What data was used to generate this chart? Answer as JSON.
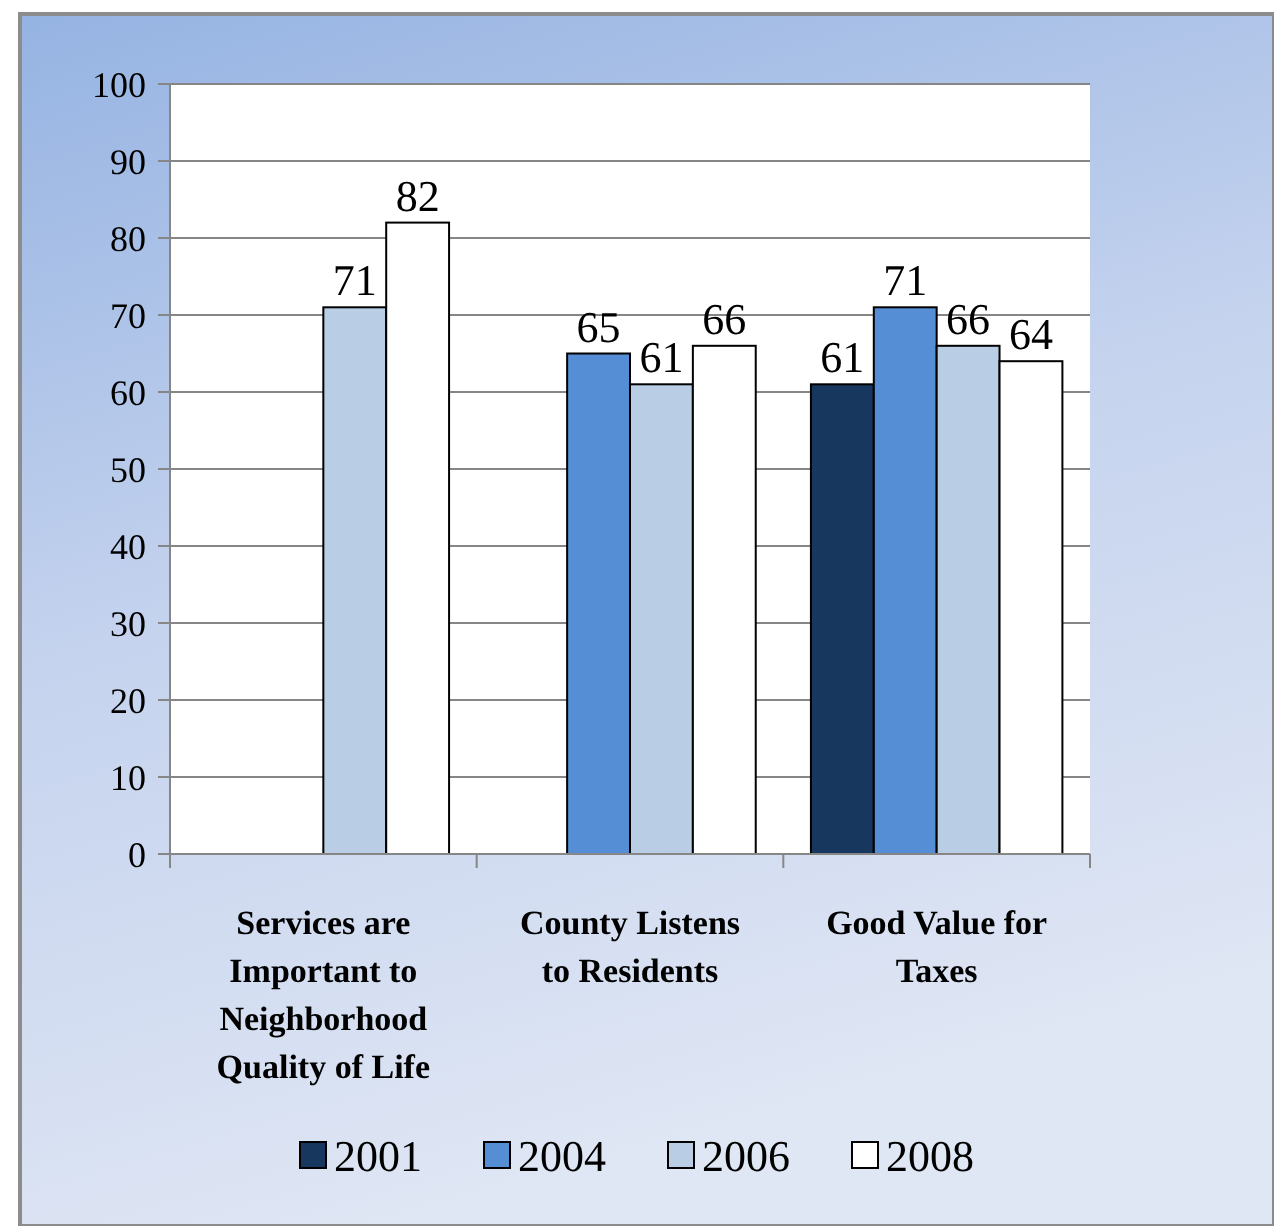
{
  "chart_data": {
    "type": "bar",
    "categories": [
      "Services are Important to Neighborhood Quality of Life",
      "County Listens to Residents",
      "Good Value for Taxes"
    ],
    "series": [
      {
        "name": "2001",
        "color": "#17375e",
        "values": [
          null,
          null,
          61
        ]
      },
      {
        "name": "2004",
        "color": "#558ed5",
        "values": [
          null,
          65,
          71
        ]
      },
      {
        "name": "2006",
        "color": "#b9cde5",
        "values": [
          71,
          61,
          66
        ]
      },
      {
        "name": "2008",
        "color": "#ffffff",
        "values": [
          82,
          66,
          64
        ]
      }
    ],
    "ylim": [
      0,
      100
    ],
    "yticks": [
      0,
      10,
      20,
      30,
      40,
      50,
      60,
      70,
      80,
      90,
      100
    ],
    "grid": "y",
    "legend": "bottom",
    "data_labels": true
  }
}
